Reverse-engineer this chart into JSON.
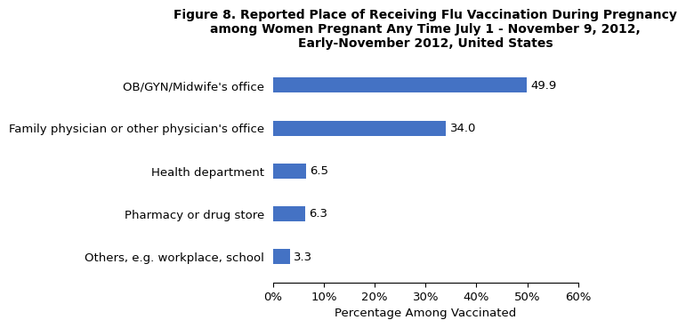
{
  "title_line1": "Figure 8. Reported Place of Receiving Flu Vaccination During Pregnancy",
  "title_line2": "among Women Pregnant Any Time July 1 - November 9, 2012,",
  "title_line3": "Early-November 2012, United States",
  "categories": [
    "Others, e.g. workplace, school",
    "Pharmacy or drug store",
    "Health department",
    "Family physician or other physician's office",
    "OB/GYN/Midwife's office"
  ],
  "values": [
    3.3,
    6.3,
    6.5,
    34.0,
    49.9
  ],
  "bar_color": "#4472C4",
  "xlabel": "Percentage Among Vaccinated",
  "xlim": [
    0,
    60
  ],
  "xticks": [
    0,
    10,
    20,
    30,
    40,
    50,
    60
  ],
  "xtick_labels": [
    "0%",
    "10%",
    "20%",
    "30%",
    "40%",
    "50%",
    "60%"
  ],
  "value_labels": [
    "3.3",
    "6.3",
    "6.5",
    "34.0",
    "49.9"
  ],
  "bar_height": 0.35,
  "title_fontsize": 10,
  "label_fontsize": 9.5,
  "tick_fontsize": 9.5,
  "value_fontsize": 9.5
}
